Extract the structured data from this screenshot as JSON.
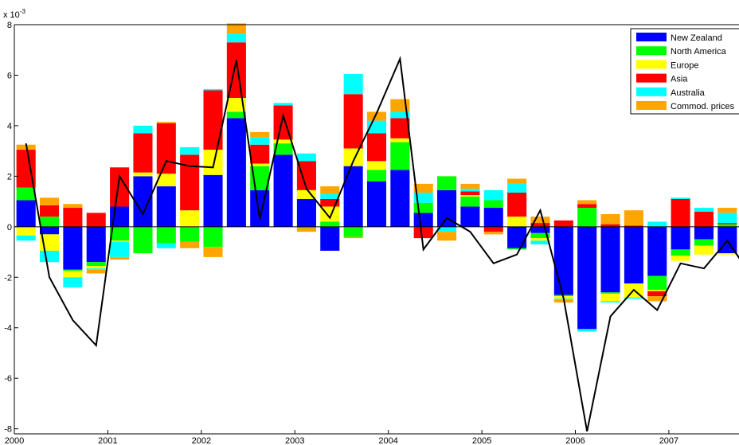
{
  "chart_data": {
    "type": "bar",
    "stacked": true,
    "exponent_label": "x 10",
    "exponent_power": "-3",
    "x_ticks": [
      {
        "label": "2000",
        "x": 2000
      },
      {
        "label": "2001",
        "x": 2001
      },
      {
        "label": "2002",
        "x": 2002
      },
      {
        "label": "2003",
        "x": 2003
      },
      {
        "label": "2004",
        "x": 2004
      },
      {
        "label": "2005",
        "x": 2005
      },
      {
        "label": "2006",
        "x": 2006
      },
      {
        "label": "2007",
        "x": 2007
      }
    ],
    "y_ticks": [
      {
        "label": "8",
        "v": 8
      },
      {
        "label": "6",
        "v": 6
      },
      {
        "label": "4",
        "v": 4
      },
      {
        "label": "2",
        "v": 2
      },
      {
        "label": "0",
        "v": 0
      },
      {
        "label": "-2",
        "v": -2
      },
      {
        "label": "-4",
        "v": -4
      },
      {
        "label": "-6",
        "v": -6
      },
      {
        "label": "-8",
        "v": -8
      }
    ],
    "xlim": [
      2000,
      2007.75
    ],
    "ylim": [
      -8.2,
      8
    ],
    "grid": false,
    "legend_position": "top-right",
    "x": [
      2000.0,
      2000.25,
      2000.5,
      2000.75,
      2001.0,
      2001.25,
      2001.5,
      2001.75,
      2002.0,
      2002.25,
      2002.5,
      2002.75,
      2003.0,
      2003.25,
      2003.5,
      2003.75,
      2004.0,
      2004.25,
      2004.5,
      2004.75,
      2005.0,
      2005.25,
      2005.5,
      2005.75,
      2006.0,
      2006.25,
      2006.5,
      2006.75,
      2007.0,
      2007.25,
      2007.5,
      2007.75
    ],
    "series": [
      {
        "name": "New Zealand",
        "color": "#0000ff",
        "values": [
          1.05,
          -0.3,
          -1.7,
          -1.4,
          0.8,
          2.0,
          1.6,
          0.0,
          2.05,
          4.3,
          1.45,
          2.85,
          1.1,
          -0.95,
          2.4,
          1.8,
          2.25,
          0.55,
          1.45,
          0.8,
          0.75,
          -0.85,
          -0.25,
          -2.7,
          -4.05,
          -2.6,
          -2.25,
          -1.95,
          -0.9,
          -0.5,
          -1.05,
          -1.5
        ]
      },
      {
        "name": "North America",
        "color": "#00ff00",
        "values": [
          0.5,
          0.4,
          -0.05,
          -0.15,
          -0.55,
          -1.05,
          -0.65,
          -0.6,
          -0.8,
          0.25,
          0.95,
          0.45,
          -0.05,
          0.2,
          -0.4,
          0.45,
          1.1,
          0.4,
          0.55,
          0.4,
          0.3,
          -0.05,
          -0.2,
          -0.05,
          0.75,
          -0.05,
          0.0,
          -0.55,
          -0.25,
          -0.25,
          0.1,
          -0.15
        ]
      },
      {
        "name": "Europe",
        "color": "#ffff00",
        "values": [
          -0.35,
          -0.65,
          -0.25,
          -0.1,
          -0.05,
          0.15,
          0.5,
          0.65,
          1.0,
          0.55,
          0.1,
          0.15,
          0.35,
          0.6,
          0.7,
          0.35,
          0.15,
          0.0,
          0.0,
          0.05,
          0.0,
          0.4,
          -0.1,
          -0.1,
          0.0,
          -0.3,
          -0.55,
          -0.05,
          -0.2,
          -0.35,
          -0.05,
          -0.2
        ]
      },
      {
        "name": "Asia",
        "color": "#ff0000",
        "values": [
          1.5,
          0.45,
          0.75,
          0.55,
          1.55,
          1.55,
          2.0,
          2.2,
          2.35,
          2.2,
          0.75,
          1.35,
          1.15,
          0.3,
          2.15,
          1.1,
          0.8,
          -0.45,
          0.0,
          0.15,
          -0.2,
          0.95,
          0.15,
          0.25,
          0.15,
          0.1,
          0.05,
          -0.2,
          1.1,
          0.6,
          0.05,
          -0.15
        ]
      },
      {
        "name": "Australia",
        "color": "#00ffff",
        "values": [
          -0.2,
          -0.45,
          -0.4,
          -0.05,
          -0.6,
          0.3,
          -0.2,
          0.3,
          0.05,
          0.35,
          0.3,
          0.1,
          0.3,
          0.2,
          0.8,
          0.5,
          0.25,
          0.4,
          -0.2,
          0.1,
          0.4,
          0.35,
          -0.15,
          -0.05,
          -0.1,
          -0.05,
          -0.05,
          0.2,
          0.05,
          0.15,
          0.4,
          0.3
        ]
      },
      {
        "name": "Commod. prices",
        "color": "#ffa500",
        "values": [
          0.2,
          0.3,
          0.15,
          -0.15,
          -0.1,
          0.0,
          0.05,
          -0.25,
          -0.4,
          0.4,
          0.2,
          0.0,
          -0.15,
          0.3,
          -0.05,
          0.35,
          0.5,
          0.35,
          -0.35,
          0.2,
          -0.1,
          0.2,
          0.25,
          -0.1,
          0.15,
          0.4,
          0.6,
          -0.2,
          0.0,
          0.0,
          0.2,
          -0.1
        ]
      }
    ],
    "line": {
      "name": "total",
      "color": "#000000",
      "values": [
        3.3,
        -2.0,
        -3.7,
        -4.7,
        2.0,
        0.5,
        2.6,
        2.4,
        2.35,
        6.6,
        0.3,
        4.4,
        1.5,
        0.35,
        2.6,
        4.5,
        6.65,
        -0.9,
        0.35,
        -0.2,
        -1.45,
        -1.1,
        0.65,
        -2.85,
        -8.1,
        -3.55,
        -2.5,
        -3.3,
        -1.45,
        -1.65,
        -0.55,
        -1.9
      ]
    }
  }
}
